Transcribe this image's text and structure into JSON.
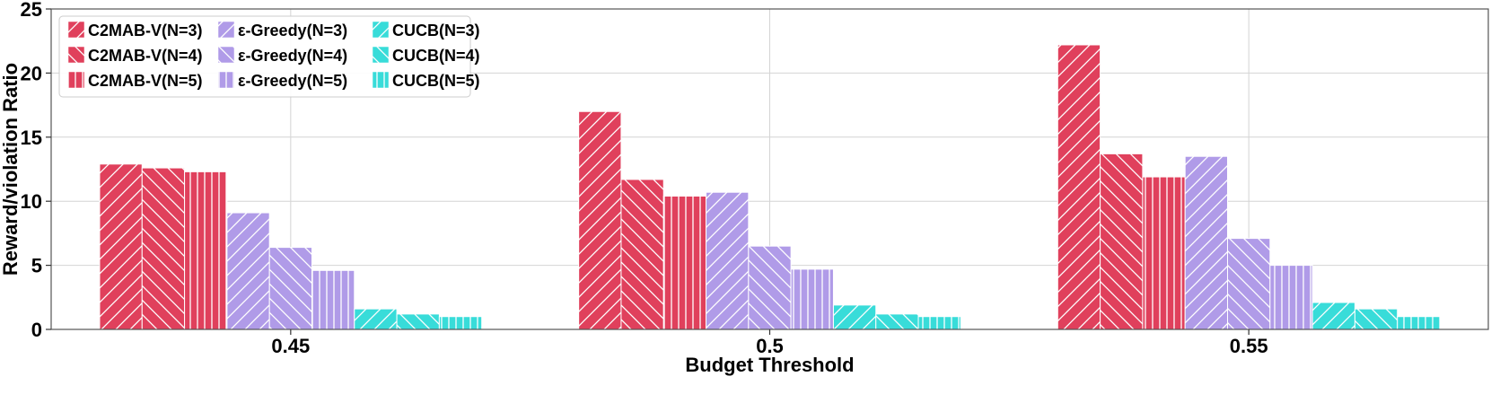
{
  "chart_data": {
    "type": "bar",
    "title": "",
    "xlabel": "Budget Threshold",
    "ylabel": "Reward/violation Ratio",
    "categories": [
      "0.45",
      "0.5",
      "0.55"
    ],
    "ylim": [
      0,
      25
    ],
    "yticks": [
      "0",
      "5",
      "10",
      "15",
      "20",
      "25"
    ],
    "grid": true,
    "legend_position": "top-left",
    "legend_columns": 3,
    "series": [
      {
        "name": "C2MAB-V(N=3)",
        "color": "#e0405c",
        "hatch": "forward",
        "values": [
          12.9,
          17.0,
          22.2
        ]
      },
      {
        "name": "C2MAB-V(N=4)",
        "color": "#e0405c",
        "hatch": "backward",
        "values": [
          12.6,
          11.7,
          13.7
        ]
      },
      {
        "name": "C2MAB-V(N=5)",
        "color": "#e0405c",
        "hatch": "vertical",
        "values": [
          12.3,
          10.4,
          11.9
        ]
      },
      {
        "name": "ε-Greedy(N=3)",
        "color": "#b09be8",
        "hatch": "forward",
        "values": [
          9.1,
          10.7,
          13.5
        ]
      },
      {
        "name": "ε-Greedy(N=4)",
        "color": "#b09be8",
        "hatch": "backward",
        "values": [
          6.4,
          6.5,
          7.1
        ]
      },
      {
        "name": "ε-Greedy(N=5)",
        "color": "#b09be8",
        "hatch": "vertical",
        "values": [
          4.6,
          4.7,
          5.0
        ]
      },
      {
        "name": "CUCB(N=3)",
        "color": "#38dcd9",
        "hatch": "forward",
        "values": [
          1.6,
          1.9,
          2.1
        ]
      },
      {
        "name": "CUCB(N=4)",
        "color": "#38dcd9",
        "hatch": "backward",
        "values": [
          1.2,
          1.2,
          1.6
        ]
      },
      {
        "name": "CUCB(N=5)",
        "color": "#38dcd9",
        "hatch": "vertical",
        "values": [
          1.0,
          1.0,
          1.0
        ]
      }
    ]
  }
}
